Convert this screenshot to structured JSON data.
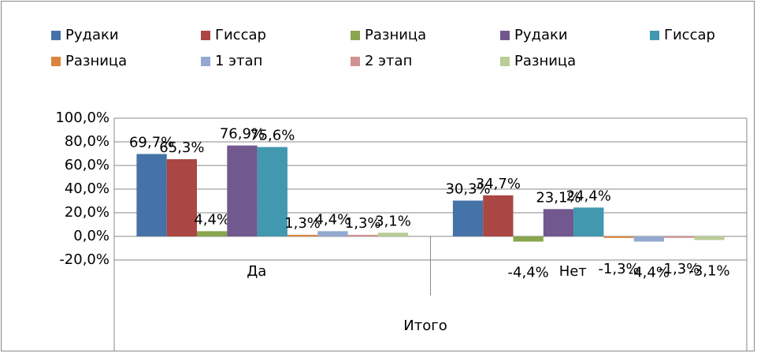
{
  "chart_data": {
    "type": "bar",
    "categories": [
      "Да",
      "Нет"
    ],
    "category_group": "Итого",
    "series": [
      {
        "name": "Рудаки",
        "color": "#4572a7",
        "values": [
          69.7,
          30.3
        ],
        "value_labels": [
          "69,7%",
          "30,3%"
        ]
      },
      {
        "name": "Гиссар",
        "color": "#aa4643",
        "values": [
          65.3,
          34.7
        ],
        "value_labels": [
          "65,3%",
          "34,7%"
        ]
      },
      {
        "name": "Разница",
        "color": "#89a54e",
        "values": [
          4.4,
          -4.4
        ],
        "value_labels": [
          "4,4%",
          "-4,4%"
        ]
      },
      {
        "name": "Рудаки",
        "color": "#71588f",
        "values": [
          76.9,
          23.1
        ],
        "value_labels": [
          "76,9%",
          "23,1%"
        ]
      },
      {
        "name": "Гиссар",
        "color": "#4198af",
        "values": [
          75.6,
          24.4
        ],
        "value_labels": [
          "75,6%",
          "24,4%"
        ]
      },
      {
        "name": "Разница",
        "color": "#db843d",
        "values": [
          1.3,
          -1.3
        ],
        "value_labels": [
          "1,3%",
          "-1,3%"
        ]
      },
      {
        "name": "1 этап",
        "color": "#93a9cf",
        "values": [
          4.4,
          -4.4
        ],
        "value_labels": [
          "4,4%",
          "-4,4%"
        ]
      },
      {
        "name": "2 этап",
        "color": "#d19392",
        "values": [
          1.3,
          -1.3
        ],
        "value_labels": [
          "1,3%",
          "-1,3%"
        ]
      },
      {
        "name": "Разница",
        "color": "#b9cd96",
        "values": [
          3.1,
          -3.1
        ],
        "value_labels": [
          "3,1%",
          "-3,1%"
        ]
      }
    ],
    "ylim": [
      -20,
      100
    ],
    "yticks": [
      {
        "value": -20,
        "label": "-20,0%"
      },
      {
        "value": 0,
        "label": "0,0%"
      },
      {
        "value": 20,
        "label": "20,0%"
      },
      {
        "value": 40,
        "label": "40,0%"
      },
      {
        "value": 60,
        "label": "60,0%"
      },
      {
        "value": 80,
        "label": "80,0%"
      },
      {
        "value": 100,
        "label": "100,0%"
      }
    ],
    "grid": true,
    "legend": "top"
  }
}
